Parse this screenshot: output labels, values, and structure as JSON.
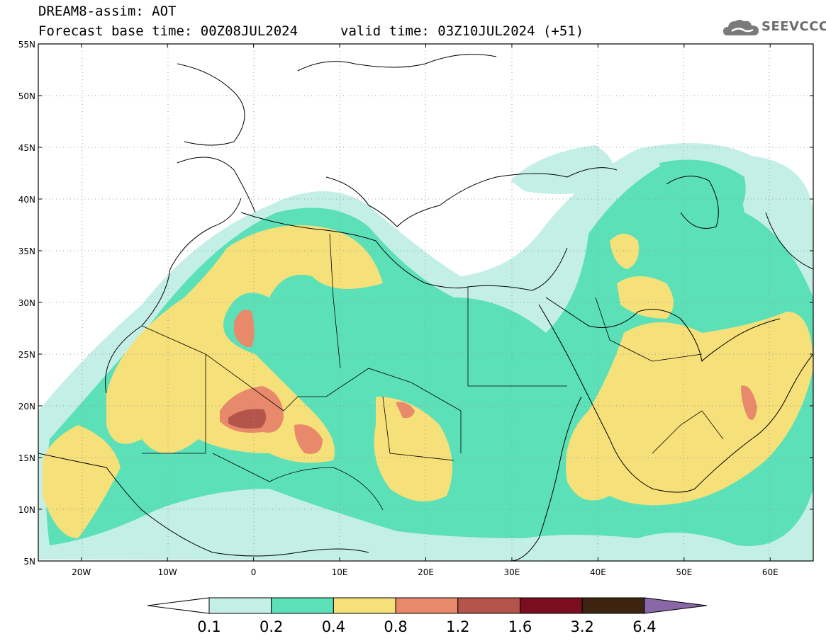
{
  "header": {
    "line1": "DREAM8-assim: AOT",
    "line2_left": "Forecast base time: 00Z08JUL2024",
    "line2_right": "valid time: 03Z10JUL2024 (+51)"
  },
  "logo": {
    "text": "SEEVCCC",
    "icon": "cloud-icon"
  },
  "map": {
    "lat_ticks": [
      "55N",
      "50N",
      "45N",
      "40N",
      "35N",
      "30N",
      "25N",
      "20N",
      "15N",
      "10N",
      "5N"
    ],
    "lon_ticks": [
      "20W",
      "10W",
      "0",
      "10E",
      "20E",
      "30E",
      "40E",
      "50E",
      "60E"
    ],
    "lat_range": [
      5,
      55
    ],
    "lon_range": [
      -25,
      65
    ]
  },
  "colorbar": {
    "labels": [
      "0.1",
      "0.2",
      "0.4",
      "0.8",
      "1.2",
      "1.6",
      "3.2",
      "6.4"
    ],
    "colors": [
      "#ffffff",
      "#c4efe7",
      "#5ce0b8",
      "#f6e07a",
      "#e8896c",
      "#b3554a",
      "#7a0e20",
      "#3c2410",
      "#8a68a8"
    ]
  }
}
